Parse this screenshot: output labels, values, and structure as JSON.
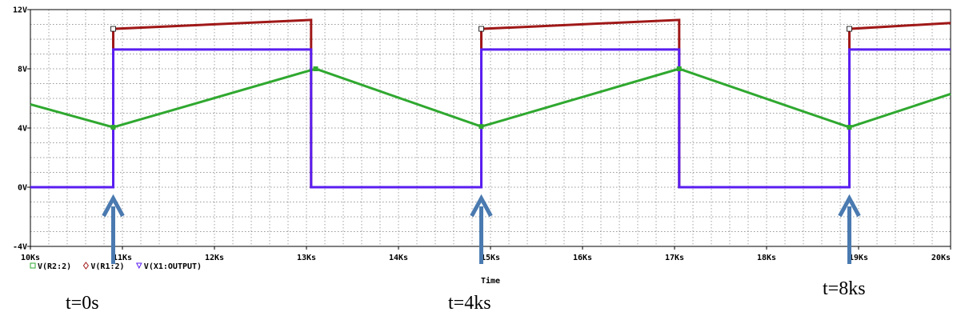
{
  "chart_data": {
    "type": "line",
    "xlabel": "Time",
    "ylabel": "",
    "xlim": [
      10,
      20
    ],
    "ylim": [
      -4,
      12
    ],
    "grid": true,
    "x_unit": "Ks",
    "x_ticks": [
      10,
      11,
      12,
      13,
      14,
      15,
      16,
      17,
      18,
      19,
      20
    ],
    "x_tick_labels": [
      "10Ks",
      "11Ks",
      "12Ks",
      "13Ks",
      "14Ks",
      "15Ks",
      "16Ks",
      "17Ks",
      "18Ks",
      "19Ks",
      "20Ks"
    ],
    "y_ticks": [
      -4,
      0,
      4,
      8,
      12
    ],
    "y_tick_labels": [
      "-4V",
      "0V",
      "4V",
      "8V",
      "12V"
    ],
    "legend_position": "bottom-left",
    "series": [
      {
        "name": "V(R2:2)",
        "color": "#2fa82f",
        "marker": "square",
        "points": [
          [
            10,
            5.6
          ],
          [
            10.9,
            4.05
          ],
          [
            13.1,
            8.0
          ],
          [
            14.9,
            4.1
          ],
          [
            17.05,
            8.0
          ],
          [
            18.9,
            4.05
          ],
          [
            20,
            6.3
          ]
        ]
      },
      {
        "name": "V(R1:2)",
        "color": "#a01818",
        "marker": "diamond",
        "points": [
          [
            10,
            0
          ],
          [
            10.9,
            0
          ],
          [
            10.9,
            10.7
          ],
          [
            13.05,
            11.3
          ],
          [
            13.05,
            0
          ],
          [
            14.9,
            0
          ],
          [
            14.9,
            10.7
          ],
          [
            17.05,
            11.3
          ],
          [
            17.05,
            0
          ],
          [
            18.9,
            0
          ],
          [
            18.9,
            10.7
          ],
          [
            20,
            11.1
          ]
        ]
      },
      {
        "name": "V(X1:OUTPUT)",
        "color": "#5a1ef0",
        "marker": "triangle",
        "points": [
          [
            10,
            0
          ],
          [
            10.9,
            0
          ],
          [
            10.9,
            9.3
          ],
          [
            13.05,
            9.3
          ],
          [
            13.05,
            0
          ],
          [
            14.9,
            0
          ],
          [
            14.9,
            9.3
          ],
          [
            17.05,
            9.3
          ],
          [
            17.05,
            0
          ],
          [
            18.9,
            0
          ],
          [
            18.9,
            9.3
          ],
          [
            20,
            9.3
          ]
        ]
      }
    ],
    "annotations": [
      {
        "text": "t=0s",
        "x": 10.9
      },
      {
        "text": "t=4ks",
        "x": 14.9
      },
      {
        "text": "t=8ks",
        "x": 18.9
      }
    ]
  }
}
